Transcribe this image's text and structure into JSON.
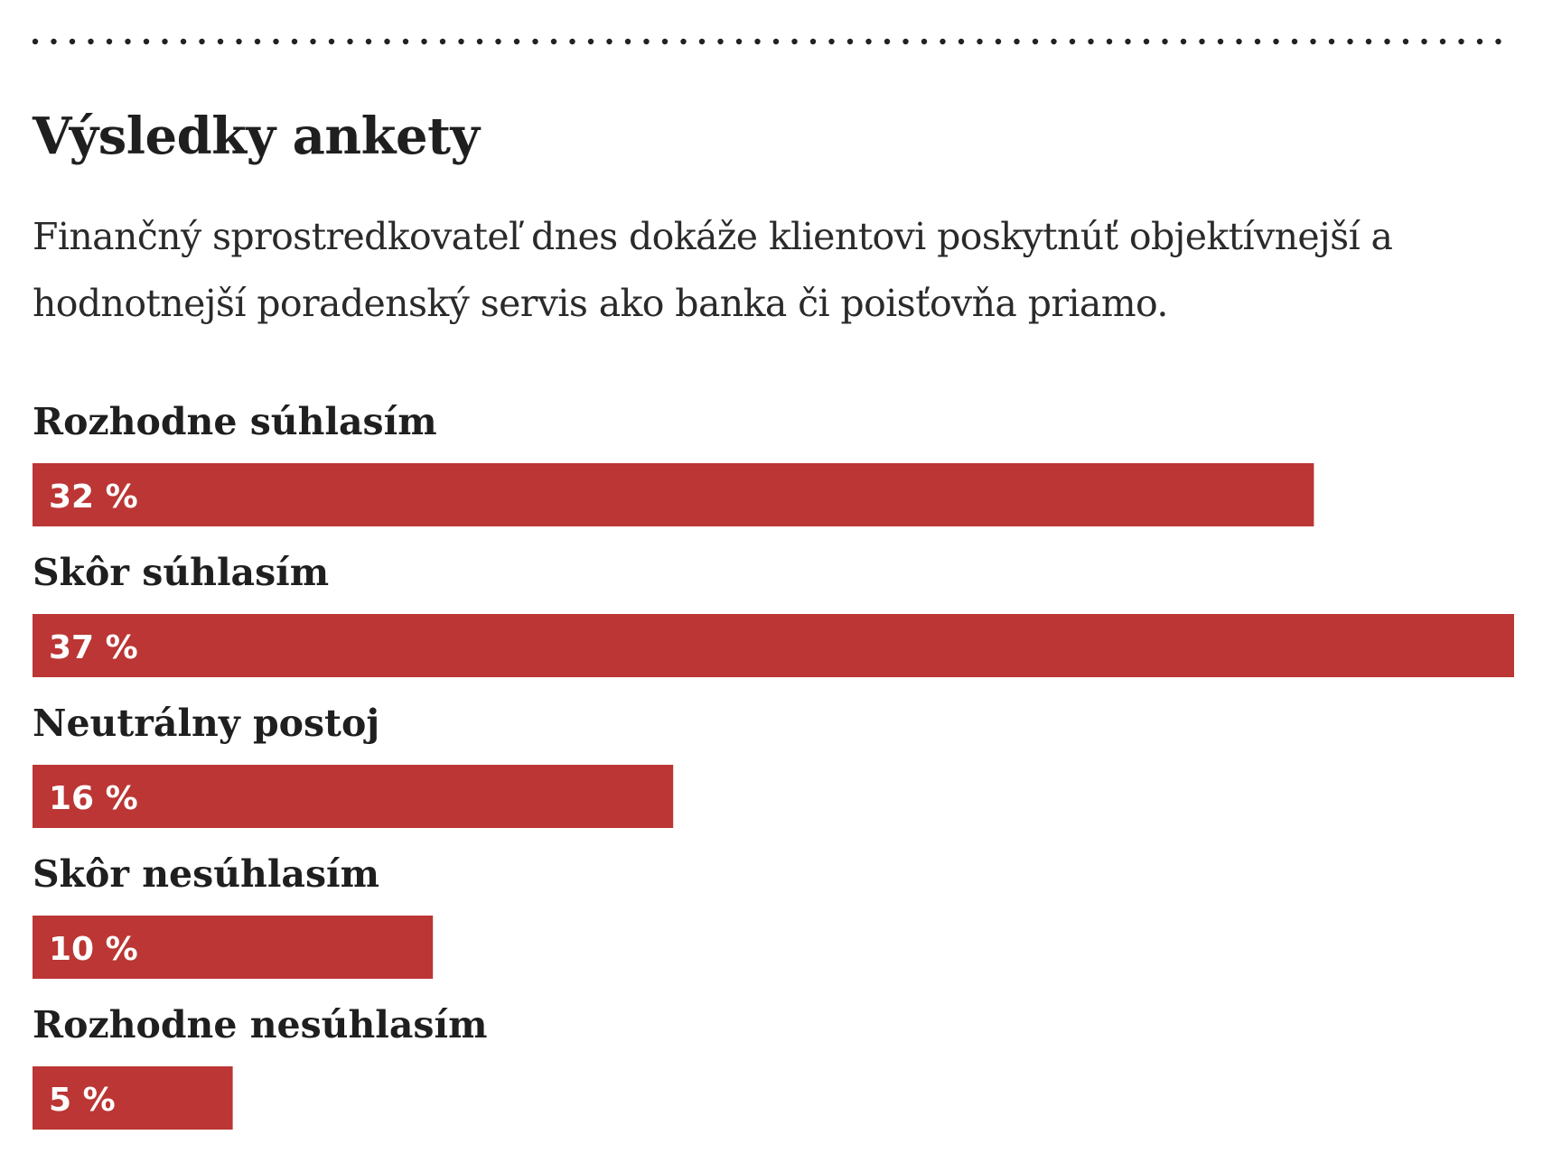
{
  "header": {
    "title": "Výsledky ankety",
    "question": "Finančný sprostredkovateľ dnes dokáže klientovi poskytnúť objektív­nejší a hodnotnejší poradenský servis ako banka či poisťovňa priamo."
  },
  "colors": {
    "bar": "#bb3634",
    "bar_label": "#ffffff",
    "text": "#1f1f1f",
    "dots": "#222222"
  },
  "chart_data": {
    "type": "bar",
    "orientation": "horizontal",
    "title": "Výsledky ankety",
    "categories": [
      "Rozhodne súhlasím",
      "Skôr súhlasím",
      "Neutrálny postoj",
      "Skôr nesúhlasím",
      "Rozhodne nesúhlasím"
    ],
    "values": [
      32,
      37,
      16,
      10,
      5
    ],
    "value_labels": [
      "32 %",
      "37 %",
      "16 %",
      "10 %",
      "5 %"
    ],
    "unit": "%",
    "xlim": [
      0,
      37
    ],
    "grid": false,
    "legend": "none"
  }
}
